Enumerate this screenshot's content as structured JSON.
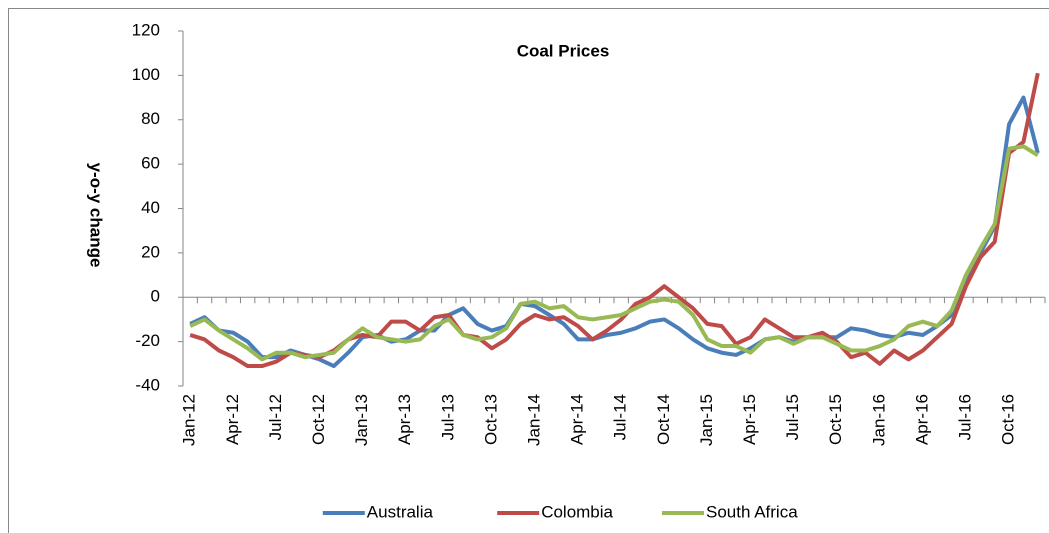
{
  "chart_data": {
    "type": "line",
    "title": "Coal Prices",
    "y_label": "y-o-y change",
    "categories": [
      "Jan-12",
      null,
      null,
      "Apr-12",
      null,
      null,
      "Jul-12",
      null,
      null,
      "Oct-12",
      null,
      null,
      "Jan-13",
      null,
      null,
      "Apr-13",
      null,
      null,
      "Jul-13",
      null,
      null,
      "Oct-13",
      null,
      null,
      "Jan-14",
      null,
      null,
      "Apr-14",
      null,
      null,
      "Jul-14",
      null,
      null,
      "Oct-14",
      null,
      null,
      "Jan-15",
      null,
      null,
      "Apr-15",
      null,
      null,
      "Jul-15",
      null,
      null,
      "Oct-15",
      null,
      null,
      "Jan-16",
      null,
      null,
      "Apr-16",
      null,
      null,
      "Jul-16",
      null,
      null,
      "Oct-16",
      null,
      null
    ],
    "series": [
      {
        "name": "Australia",
        "color": "#4a7ebb",
        "values": [
          -12,
          -9,
          -15,
          -16,
          -20,
          -27,
          -27,
          -24,
          -26,
          -28,
          -31,
          -25,
          -18,
          -17,
          -20,
          -19,
          -15,
          -15,
          -8,
          -5,
          -12,
          -15,
          -13,
          -3,
          -4,
          -8,
          -12,
          -19,
          -19,
          -17,
          -16,
          -14,
          -11,
          -10,
          -14,
          -19,
          -23,
          -25,
          -26,
          -23,
          -19,
          -18,
          -20,
          -18,
          -18,
          -18,
          -14,
          -15,
          -17,
          -18,
          -16,
          -17,
          -13,
          -8,
          8,
          20,
          32,
          78,
          90,
          65
        ]
      },
      {
        "name": "Colombia",
        "color": "#be4b48",
        "values": [
          -17,
          -19,
          -24,
          -27,
          -31,
          -31,
          -29,
          -25,
          -26,
          -27,
          -24,
          -19,
          -17,
          -18,
          -11,
          -11,
          -15,
          -9,
          -8,
          -17,
          -18,
          -23,
          -19,
          -12,
          -8,
          -10,
          -9,
          -13,
          -19,
          -15,
          -10,
          -3,
          0,
          5,
          0,
          -5,
          -12,
          -13,
          -21,
          -18,
          -10,
          -14,
          -18,
          -18,
          -16,
          -20,
          -27,
          -25,
          -30,
          -24,
          -28,
          -24,
          -18,
          -12,
          5,
          18,
          25,
          65,
          70,
          101
        ]
      },
      {
        "name": "South Africa",
        "color": "#98b954",
        "values": [
          -13,
          -10,
          -15,
          -19,
          -23,
          -28,
          -25,
          -25,
          -27,
          -26,
          -25,
          -19,
          -14,
          -18,
          -19,
          -20,
          -19,
          -13,
          -10,
          -17,
          -19,
          -18,
          -14,
          -3,
          -2,
          -5,
          -4,
          -9,
          -10,
          -9,
          -8,
          -5,
          -2,
          -1,
          -2,
          -8,
          -19,
          -22,
          -22,
          -25,
          -19,
          -18,
          -21,
          -18,
          -18,
          -21,
          -24,
          -24,
          -22,
          -19,
          -13,
          -11,
          -13,
          -6,
          10,
          22,
          33,
          67,
          68,
          64
        ]
      }
    ],
    "ylim": [
      -40,
      120
    ],
    "yticks": [
      -40,
      -20,
      0,
      20,
      40,
      60,
      80,
      100,
      120
    ],
    "legend": "bottom"
  }
}
